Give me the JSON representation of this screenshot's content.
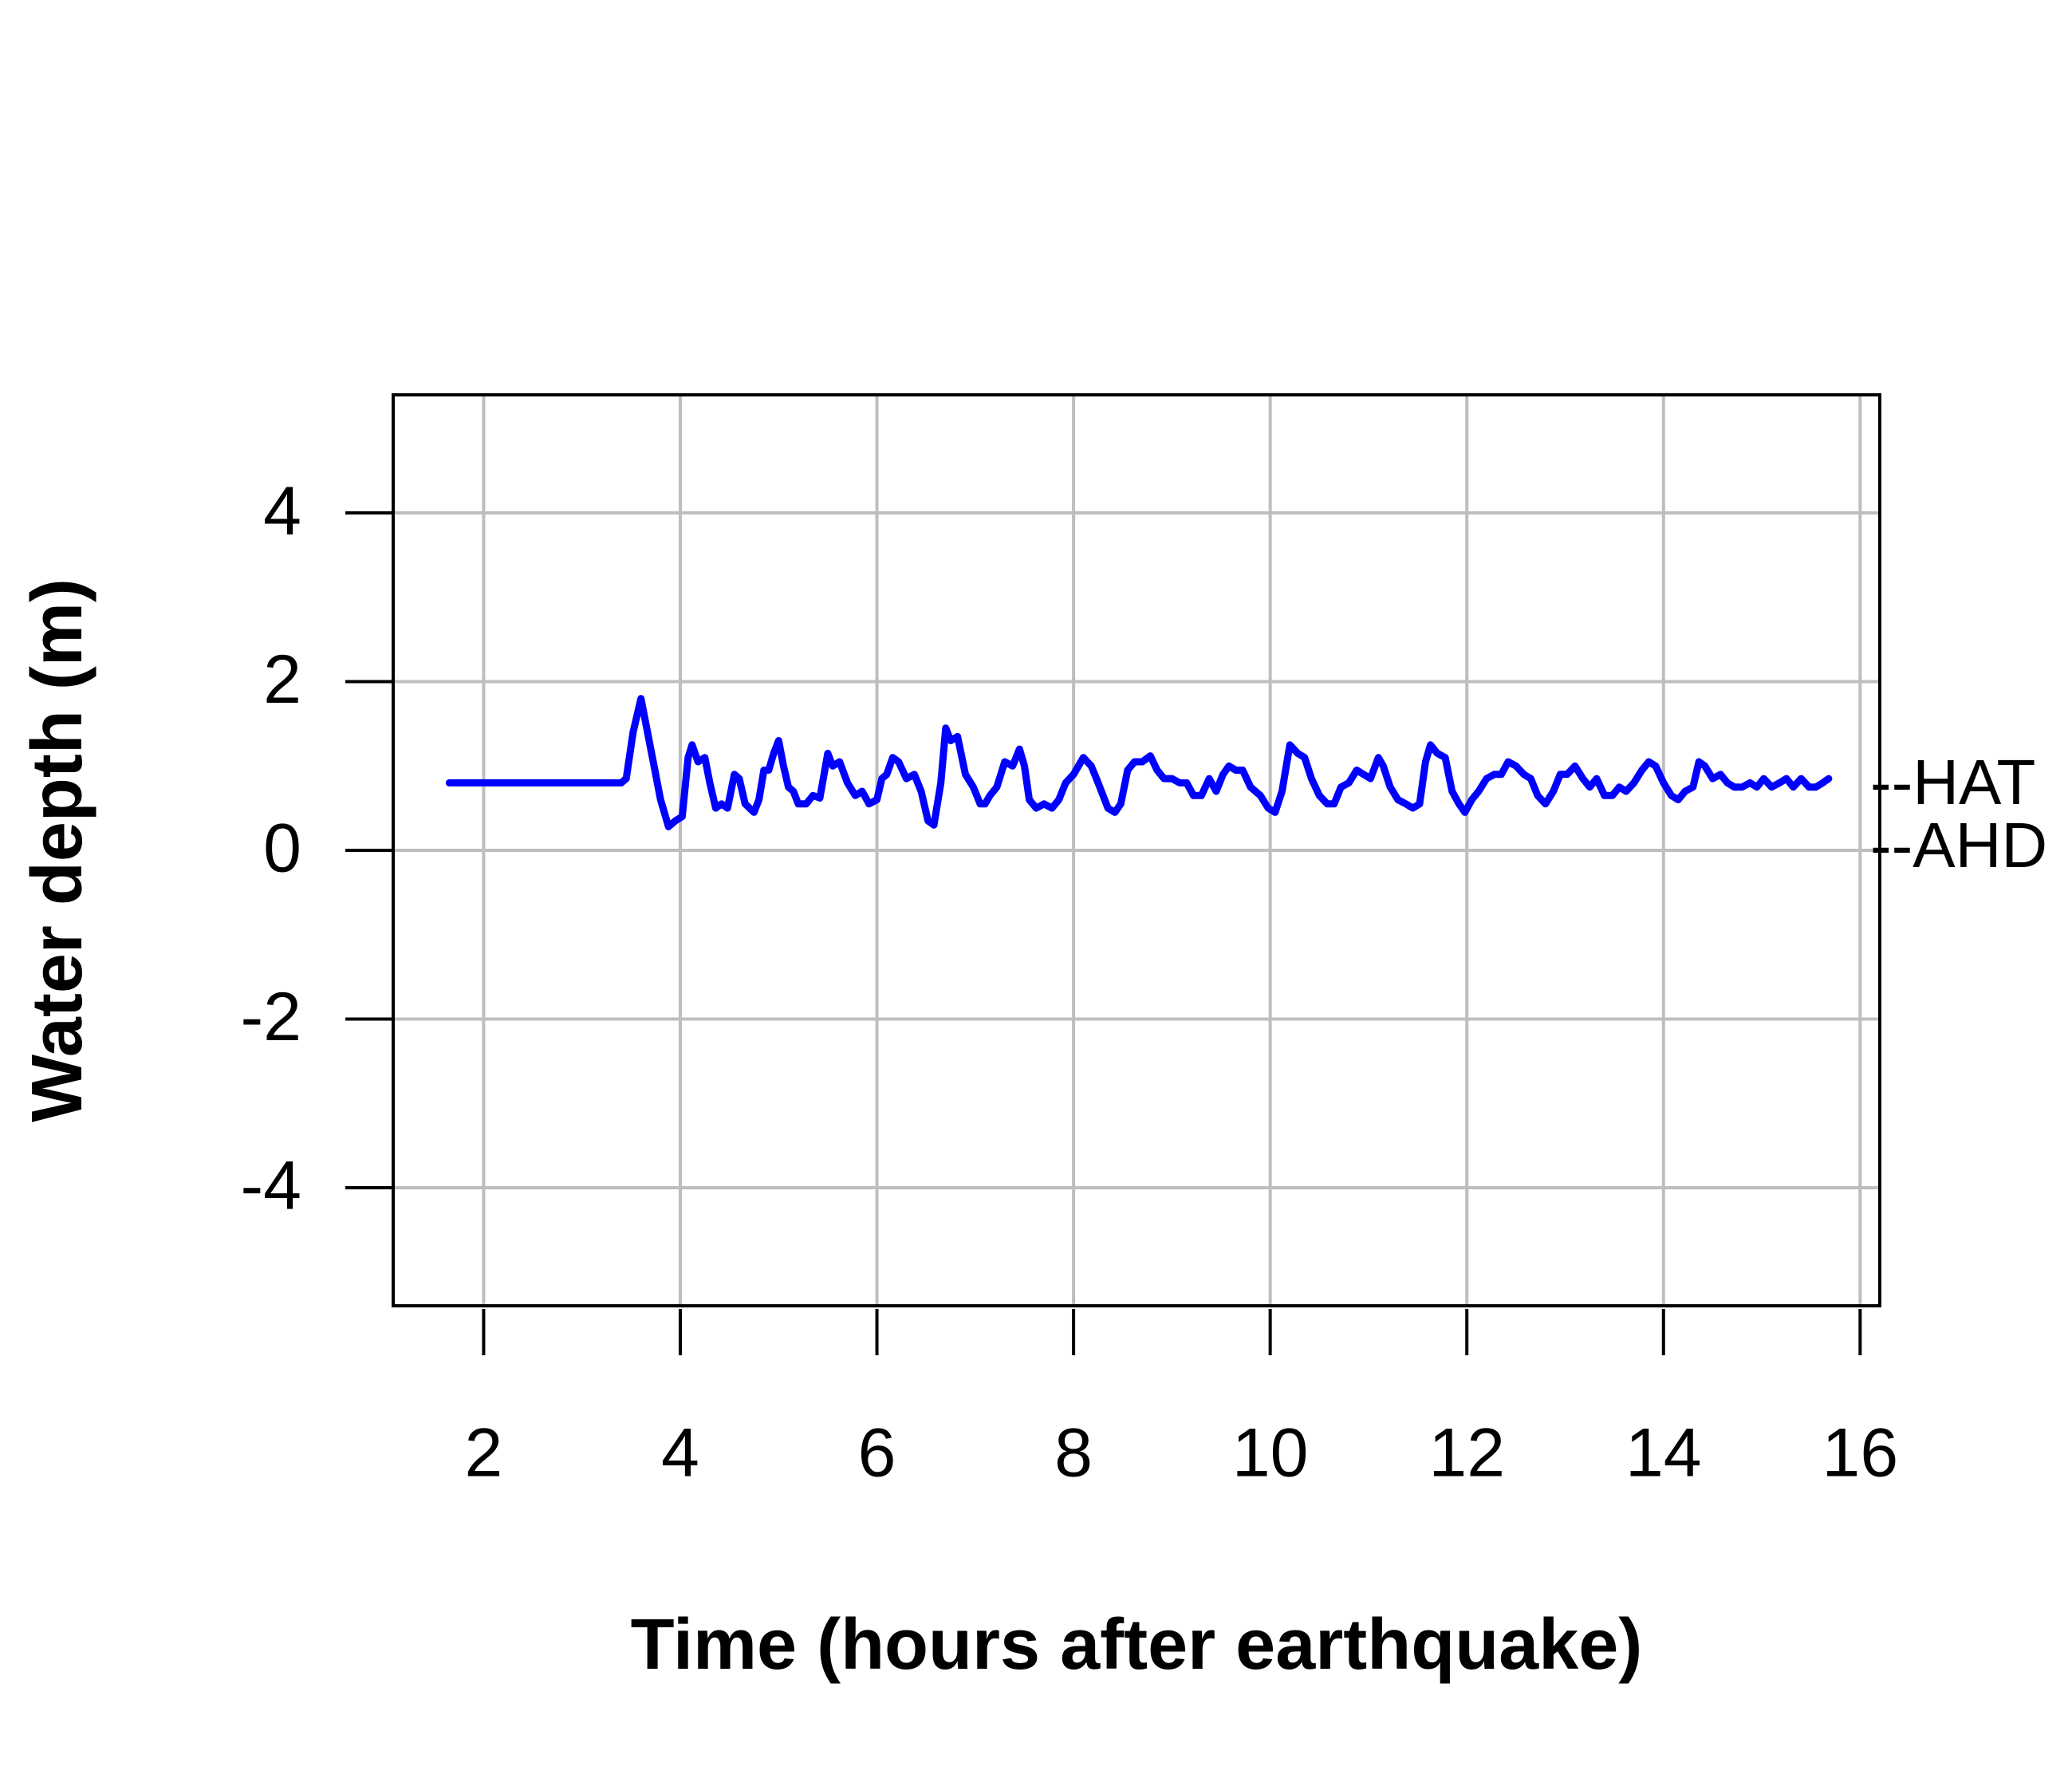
{
  "chart_data": {
    "type": "line",
    "x_label": "Time (hours after earthquake)",
    "y_label": "Water depth (m)",
    "color": "#0000ff",
    "xlim": [
      1.08,
      16.2
    ],
    "ylim": [
      -5.4,
      5.4
    ],
    "xticks": [
      2,
      4,
      6,
      8,
      10,
      12,
      14,
      16
    ],
    "yticks": [
      -4,
      -2,
      0,
      2,
      4
    ],
    "grid": true,
    "annotations": [
      {
        "text": "--HAT",
        "y": 0.75
      },
      {
        "text": "--AHD",
        "y": 0
      }
    ],
    "x": [
      1.65,
      3.4,
      3.45,
      3.52,
      3.6,
      3.7,
      3.8,
      3.88,
      3.95,
      4.02,
      4.08,
      4.12,
      4.18,
      4.25,
      4.3,
      4.36,
      4.42,
      4.48,
      4.55,
      4.6,
      4.66,
      4.75,
      4.8,
      4.85,
      4.9,
      4.95,
      5.0,
      5.05,
      5.1,
      5.15,
      5.2,
      5.28,
      5.35,
      5.42,
      5.5,
      5.55,
      5.62,
      5.7,
      5.78,
      5.85,
      5.92,
      6.0,
      6.05,
      6.1,
      6.16,
      6.22,
      6.3,
      6.38,
      6.45,
      6.52,
      6.58,
      6.65,
      6.7,
      6.75,
      6.82,
      6.9,
      6.98,
      7.05,
      7.1,
      7.15,
      7.22,
      7.3,
      7.38,
      7.45,
      7.5,
      7.55,
      7.62,
      7.7,
      7.78,
      7.85,
      7.92,
      8.0,
      8.1,
      8.18,
      8.25,
      8.35,
      8.42,
      8.48,
      8.55,
      8.62,
      8.7,
      8.78,
      8.85,
      8.92,
      9.0,
      9.08,
      9.15,
      9.22,
      9.3,
      9.38,
      9.45,
      9.52,
      9.58,
      9.65,
      9.72,
      9.8,
      9.9,
      9.98,
      10.05,
      10.12,
      10.2,
      10.28,
      10.35,
      10.42,
      10.5,
      10.58,
      10.65,
      10.72,
      10.8,
      10.88,
      10.95,
      11.02,
      11.1,
      11.15,
      11.22,
      11.3,
      11.38,
      11.45,
      11.52,
      11.58,
      11.63,
      11.7,
      11.78,
      11.85,
      11.92,
      11.98,
      12.05,
      12.12,
      12.2,
      12.28,
      12.35,
      12.42,
      12.5,
      12.58,
      12.65,
      12.72,
      12.8,
      12.88,
      12.95,
      13.02,
      13.1,
      13.18,
      13.25,
      13.32,
      13.4,
      13.48,
      13.55,
      13.62,
      13.7,
      13.78,
      13.85,
      13.92,
      14.0,
      14.08,
      14.15,
      14.22,
      14.3,
      14.36,
      14.42,
      14.5,
      14.58,
      14.65,
      14.72,
      14.8,
      14.88,
      14.95,
      15.02,
      15.1,
      15.18,
      15.25,
      15.32,
      15.4,
      15.48,
      15.55,
      15.62,
      15.68
    ],
    "values": [
      0.8,
      0.8,
      0.85,
      1.4,
      1.8,
      1.2,
      0.6,
      0.28,
      0.35,
      0.4,
      1.1,
      1.25,
      1.05,
      1.1,
      0.8,
      0.5,
      0.55,
      0.5,
      0.9,
      0.85,
      0.55,
      0.45,
      0.6,
      0.95,
      0.95,
      1.15,
      1.3,
      1.0,
      0.75,
      0.7,
      0.55,
      0.55,
      0.65,
      0.62,
      1.15,
      1.0,
      1.05,
      0.8,
      0.65,
      0.7,
      0.55,
      0.6,
      0.85,
      0.9,
      1.1,
      1.05,
      0.85,
      0.9,
      0.7,
      0.35,
      0.3,
      0.8,
      1.45,
      1.3,
      1.35,
      0.9,
      0.75,
      0.55,
      0.55,
      0.65,
      0.75,
      1.05,
      1.0,
      1.2,
      1.0,
      0.6,
      0.5,
      0.55,
      0.5,
      0.6,
      0.8,
      0.9,
      1.1,
      1.0,
      0.8,
      0.5,
      0.45,
      0.55,
      0.95,
      1.05,
      1.05,
      1.12,
      0.95,
      0.85,
      0.85,
      0.8,
      0.8,
      0.65,
      0.65,
      0.85,
      0.7,
      0.9,
      1.0,
      0.95,
      0.95,
      0.75,
      0.65,
      0.5,
      0.45,
      0.7,
      1.25,
      1.15,
      1.1,
      0.85,
      0.65,
      0.55,
      0.55,
      0.75,
      0.8,
      0.95,
      0.9,
      0.85,
      1.1,
      1.0,
      0.75,
      0.6,
      0.55,
      0.5,
      0.55,
      1.05,
      1.25,
      1.15,
      1.1,
      0.7,
      0.55,
      0.45,
      0.6,
      0.7,
      0.85,
      0.9,
      0.9,
      1.05,
      1.0,
      0.9,
      0.85,
      0.65,
      0.55,
      0.7,
      0.9,
      0.9,
      1.0,
      0.85,
      0.75,
      0.85,
      0.65,
      0.65,
      0.75,
      0.7,
      0.8,
      0.95,
      1.05,
      1.0,
      0.8,
      0.65,
      0.6,
      0.7,
      0.75,
      1.05,
      1.0,
      0.85,
      0.9,
      0.8,
      0.75,
      0.75,
      0.8,
      0.75,
      0.85,
      0.75,
      0.8,
      0.85,
      0.75,
      0.85,
      0.75,
      0.75,
      0.8,
      0.85
    ]
  }
}
